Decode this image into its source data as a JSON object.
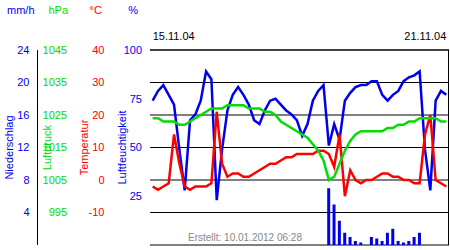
{
  "chart_data": {
    "type": "line",
    "grid": true,
    "annotation": "Erstellt: 10.01.2012 06:28",
    "categories": [
      "15.11.04",
      null,
      null,
      null,
      null,
      null,
      null,
      null,
      null,
      null,
      null,
      null,
      null,
      null,
      null,
      null,
      null,
      null,
      null,
      null,
      null,
      null,
      null,
      null,
      null,
      null,
      null,
      null,
      null,
      null,
      null,
      null,
      null,
      null,
      null,
      null,
      null,
      null,
      null,
      null,
      null,
      null,
      null,
      null,
      null,
      null,
      null,
      null,
      null,
      null,
      null,
      null,
      null,
      null,
      null,
      "21.11.04"
    ],
    "series": [
      {
        "name": "Luftfeuchtigkeit",
        "unit": "%",
        "type": "line",
        "color": "#0000ee",
        "ylim": [
          0,
          100
        ],
        "yticks": [
          0,
          25,
          50,
          75,
          100
        ],
        "values": [
          74,
          79,
          82,
          77,
          72,
          49,
          28,
          64,
          67,
          74,
          89,
          85,
          23,
          49,
          69,
          77,
          81,
          77,
          72,
          64,
          62,
          69,
          74,
          75,
          72,
          69,
          67,
          64,
          56,
          62,
          74,
          79,
          82,
          51,
          62,
          54,
          74,
          78,
          81,
          82,
          82,
          84,
          84,
          77,
          74,
          77,
          79,
          84,
          86,
          87,
          89,
          49,
          28,
          74,
          79,
          77
        ]
      },
      {
        "name": "Temperatur",
        "unit": "°C",
        "type": "line",
        "color": "#ff0000",
        "ylim": [
          -20,
          40
        ],
        "yticks": [
          -20,
          -10,
          0,
          10,
          20,
          30,
          40
        ],
        "values": [
          -2,
          -3,
          -2,
          -1,
          14,
          5,
          -2,
          -3,
          -2,
          -2,
          -2,
          -1,
          21,
          5,
          1,
          2,
          2,
          1,
          1,
          2,
          3,
          4,
          5,
          5,
          6,
          7,
          7,
          8,
          8,
          8,
          8,
          9,
          9,
          8,
          4,
          14,
          -5,
          3,
          0,
          -1,
          0,
          0,
          1,
          2,
          2,
          1,
          1,
          0,
          0,
          -1,
          -1,
          14,
          20,
          0,
          -1,
          -2
        ]
      },
      {
        "name": "Luftdruck",
        "unit": "hPa",
        "type": "line",
        "color": "#00dd00",
        "ylim": [
          985,
          1045
        ],
        "yticks": [
          985,
          995,
          1005,
          1015,
          1025,
          1035,
          1045
        ],
        "values": [
          1024,
          1024,
          1023,
          1023,
          1023,
          1022,
          1022,
          1023,
          1024,
          1025,
          1026,
          1027,
          1027,
          1027,
          1028,
          1028,
          1028,
          1028,
          1027,
          1027,
          1027,
          1026,
          1026,
          1025,
          1023,
          1022,
          1021,
          1020,
          1019,
          1018,
          1016,
          1014,
          1011,
          1005,
          1006,
          1010,
          1014,
          1017,
          1019,
          1020,
          1020,
          1020,
          1020,
          1020,
          1021,
          1021,
          1022,
          1022,
          1023,
          1023,
          1024,
          1024,
          1024,
          1024,
          1023,
          1023
        ]
      },
      {
        "name": "Niederschlag",
        "unit": "mm/h",
        "type": "bar",
        "color": "#0000ee",
        "ylim": [
          0,
          24
        ],
        "yticks": [
          0,
          4,
          8,
          12,
          16,
          20,
          24
        ],
        "values": [
          0,
          0,
          0,
          0,
          0,
          0,
          0,
          0,
          0,
          0,
          0,
          0,
          0,
          0,
          0,
          0,
          0,
          0,
          0,
          0,
          0,
          0,
          0,
          0,
          0,
          0,
          0,
          0,
          0,
          0,
          0,
          0,
          0,
          7,
          5,
          3,
          1.5,
          1,
          0.5,
          0.3,
          0,
          1,
          0.8,
          0.5,
          1.5,
          2,
          0.5,
          0.3,
          0.5,
          1,
          1.5,
          0,
          0,
          0,
          0,
          0
        ]
      }
    ]
  }
}
